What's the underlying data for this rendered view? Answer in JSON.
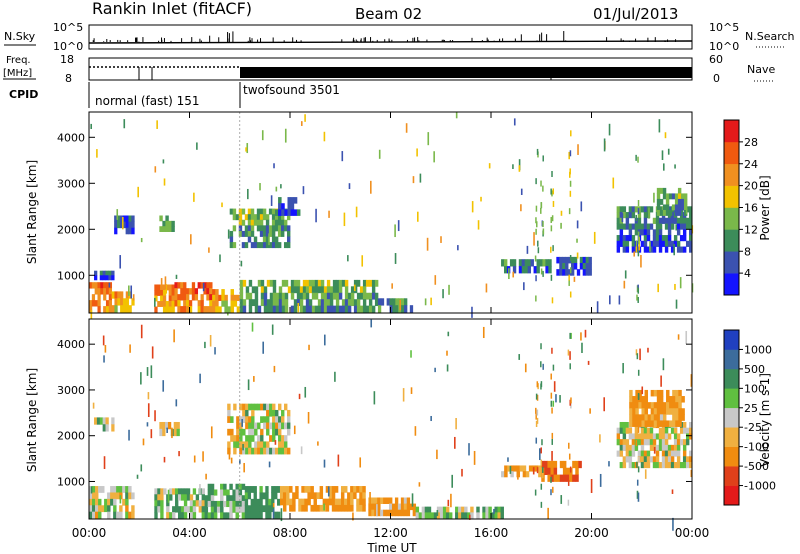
{
  "header": {
    "title": "Rankin Inlet (fitACF)",
    "beam": "Beam 02",
    "date": "01/Jul/2013"
  },
  "noise_panel": {
    "left_label": "N.Sky",
    "right_label": "N.Search",
    "left_ticks": [
      "10^5",
      "10^0"
    ],
    "right_ticks": [
      "10^5",
      "10^0"
    ]
  },
  "freq_panel": {
    "left_label_1": "Freq.",
    "left_label_2": "[MHz]",
    "right_label": "Nave",
    "left_ticks": [
      "18",
      "8"
    ],
    "right_ticks": [
      "60",
      "0"
    ]
  },
  "cpid_panel": {
    "label": "CPID",
    "modes": [
      {
        "name": "normal (fast) 151",
        "start_hour": 0,
        "end_hour": 6
      },
      {
        "name": "twofsound 3501",
        "start_hour": 6,
        "end_hour": 24
      }
    ]
  },
  "x_axis": {
    "label": "Time UT",
    "ticks": [
      "00:00",
      "04:00",
      "08:00",
      "12:00",
      "16:00",
      "20:00",
      "00:00"
    ],
    "tick_hours": [
      0,
      4,
      8,
      12,
      16,
      20,
      24
    ]
  },
  "power_panel": {
    "ylabel": "Slant Range [km]",
    "yticks": [
      "1000",
      "2000",
      "3000",
      "4000"
    ],
    "ytick_values": [
      1000,
      2000,
      3000,
      4000
    ],
    "colorbar_label": "Power [dB]",
    "colorbar_ticks": [
      "4",
      "8",
      "12",
      "16",
      "20",
      "24",
      "28"
    ]
  },
  "velocity_panel": {
    "ylabel": "Slant Range [km]",
    "yticks": [
      "1000",
      "2000",
      "3000",
      "4000"
    ],
    "ytick_values": [
      1000,
      2000,
      3000,
      4000
    ],
    "colorbar_label": "Velocity [m s-1]",
    "colorbar_ticks": [
      "1000",
      "500",
      "100",
      "25",
      "-25",
      "-100",
      "-500",
      "-1000"
    ]
  },
  "chart_data": [
    {
      "type": "heatmap",
      "title": "Power [dB]",
      "xlabel": "Time UT",
      "ylabel": "Slant Range [km]",
      "xlim": [
        0,
        24
      ],
      "ylim": [
        180,
        4550
      ],
      "colorbar": {
        "min": 0,
        "max": 32,
        "ticks": [
          4,
          8,
          12,
          16,
          20,
          24,
          28
        ],
        "colors": [
          "#1414ff",
          "#3b52b0",
          "#3c8c5a",
          "#7ab84a",
          "#f2c200",
          "#f09020",
          "#f05a10",
          "#e41a1a"
        ]
      },
      "regions": [
        {
          "t": [
            0.0,
            0.9
          ],
          "r": [
            200,
            850
          ],
          "value": 26
        },
        {
          "t": [
            0.9,
            1.8
          ],
          "r": [
            200,
            650
          ],
          "value": 22
        },
        {
          "t": [
            2.6,
            3.4
          ],
          "r": [
            200,
            800
          ],
          "value": 25
        },
        {
          "t": [
            3.4,
            4.9
          ],
          "r": [
            200,
            850
          ],
          "value": 27
        },
        {
          "t": [
            4.9,
            6.0
          ],
          "r": [
            200,
            700
          ],
          "value": 22
        },
        {
          "t": [
            6.0,
            11.5
          ],
          "r": [
            200,
            900
          ],
          "value": 14
        },
        {
          "t": [
            11.5,
            13.0
          ],
          "r": [
            200,
            500
          ],
          "value": 11
        },
        {
          "t": [
            0.2,
            1.0
          ],
          "r": [
            900,
            1100
          ],
          "value": 6
        },
        {
          "t": [
            1.0,
            1.8
          ],
          "r": [
            1900,
            2300
          ],
          "value": 7
        },
        {
          "t": [
            2.8,
            3.4
          ],
          "r": [
            1950,
            2300
          ],
          "value": 16
        },
        {
          "t": [
            5.6,
            8.0
          ],
          "r": [
            1600,
            2450
          ],
          "value": 14
        },
        {
          "t": [
            7.4,
            8.4
          ],
          "r": [
            2300,
            2700
          ],
          "value": 9
        },
        {
          "t": [
            18.6,
            20.0
          ],
          "r": [
            1000,
            1400
          ],
          "value": 8
        },
        {
          "t": [
            16.4,
            18.4
          ],
          "r": [
            1050,
            1350
          ],
          "value": 10
        },
        {
          "t": [
            21.0,
            24.0
          ],
          "r": [
            1500,
            2500
          ],
          "value": 10
        },
        {
          "t": [
            22.6,
            23.8
          ],
          "r": [
            2300,
            2900
          ],
          "value": 13
        }
      ]
    },
    {
      "type": "heatmap",
      "title": "Velocity [m s-1]",
      "xlabel": "Time UT",
      "ylabel": "Slant Range [km]",
      "xlim": [
        0,
        24
      ],
      "ylim": [
        180,
        4550
      ],
      "colorbar": {
        "ticks": [
          1000,
          500,
          100,
          25,
          -25,
          -100,
          -500,
          -1000
        ],
        "colors": [
          "#2040c0",
          "#3c6c9c",
          "#3c8c5a",
          "#60c040",
          "#c8c8c8",
          "#f0b040",
          "#f08c10",
          "#e0401a",
          "#e41a1a"
        ]
      },
      "regions": [
        {
          "t": [
            0.0,
            1.8
          ],
          "r": [
            200,
            900
          ],
          "value": 0
        },
        {
          "t": [
            2.6,
            4.6
          ],
          "r": [
            200,
            850
          ],
          "value": 60
        },
        {
          "t": [
            4.6,
            6.2
          ],
          "r": [
            200,
            950
          ],
          "value": 120
        },
        {
          "t": [
            6.2,
            7.6
          ],
          "r": [
            200,
            900
          ],
          "value": 200
        },
        {
          "t": [
            7.6,
            11.0
          ],
          "r": [
            350,
            900
          ],
          "value": -150
        },
        {
          "t": [
            11.0,
            13.0
          ],
          "r": [
            250,
            650
          ],
          "value": -120
        },
        {
          "t": [
            13.0,
            16.5
          ],
          "r": [
            200,
            450
          ],
          "value": 40
        },
        {
          "t": [
            0.2,
            1.0
          ],
          "r": [
            2100,
            2400
          ],
          "value": 0
        },
        {
          "t": [
            2.8,
            3.6
          ],
          "r": [
            2000,
            2300
          ],
          "value": 0
        },
        {
          "t": [
            5.5,
            8.0
          ],
          "r": [
            1600,
            2700
          ],
          "value": 0
        },
        {
          "t": [
            18.0,
            19.6
          ],
          "r": [
            1000,
            1450
          ],
          "value": -500
        },
        {
          "t": [
            16.4,
            18.0
          ],
          "r": [
            1100,
            1350
          ],
          "value": -100
        },
        {
          "t": [
            21.0,
            24.0
          ],
          "r": [
            1300,
            2300
          ],
          "value": 0
        },
        {
          "t": [
            21.5,
            23.7
          ],
          "r": [
            2200,
            3000
          ],
          "value": -150
        }
      ]
    }
  ]
}
